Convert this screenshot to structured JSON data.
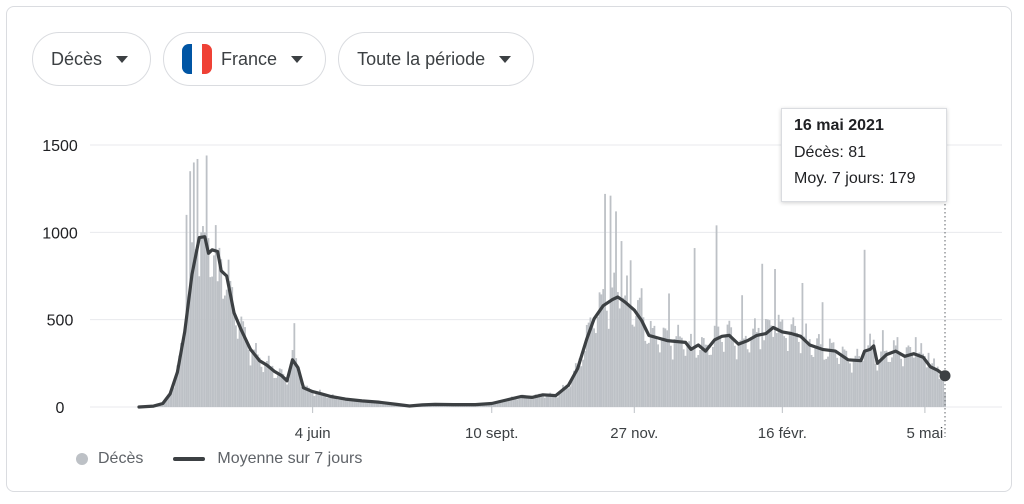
{
  "filters": {
    "metric": "Décès",
    "country": "France",
    "period": "Toute la période"
  },
  "colors": {
    "bars": "#bdc1c6",
    "line": "#3c4043",
    "grid": "#e8eaed",
    "flag_blue": "#0055a4",
    "flag_white": "#ffffff",
    "flag_red": "#ef4135"
  },
  "tooltip": {
    "date": "16 mai 2021",
    "deaths_label": "Décès: 81",
    "avg_label": "Moy. 7 jours: 179"
  },
  "legend": {
    "bars_label": "Décès",
    "line_label": "Moyenne sur 7 jours"
  },
  "chart_data": {
    "type": "bar",
    "y_ticks": [
      0,
      500,
      1000,
      1500
    ],
    "ylim": [
      0,
      1500
    ],
    "xlim": [
      "2020-03-01",
      "2021-05-16"
    ],
    "x_ticks": [
      {
        "date": "2020-06-04",
        "label": "4 juin"
      },
      {
        "date": "2020-09-10",
        "label": "10 sept."
      },
      {
        "date": "2020-11-27",
        "label": "27 nov."
      },
      {
        "date": "2021-02-16",
        "label": "16 févr."
      },
      {
        "date": "2021-05-05",
        "label": "5 mai"
      }
    ],
    "highlight": {
      "date": "2021-05-16",
      "value": 81,
      "avg": 179
    },
    "series": [
      {
        "name": "Moyenne sur 7 jours",
        "type": "line",
        "points": [
          [
            "2020-03-01",
            0
          ],
          [
            "2020-03-09",
            5
          ],
          [
            "2020-03-14",
            20
          ],
          [
            "2020-03-18",
            75
          ],
          [
            "2020-03-22",
            200
          ],
          [
            "2020-03-26",
            430
          ],
          [
            "2020-03-30",
            760
          ],
          [
            "2020-04-03",
            970
          ],
          [
            "2020-04-06",
            975
          ],
          [
            "2020-04-08",
            880
          ],
          [
            "2020-04-10",
            900
          ],
          [
            "2020-04-13",
            890
          ],
          [
            "2020-04-15",
            780
          ],
          [
            "2020-04-18",
            750
          ],
          [
            "2020-04-22",
            540
          ],
          [
            "2020-04-26",
            440
          ],
          [
            "2020-05-01",
            330
          ],
          [
            "2020-05-06",
            265
          ],
          [
            "2020-05-10",
            240
          ],
          [
            "2020-05-14",
            205
          ],
          [
            "2020-05-18",
            180
          ],
          [
            "2020-05-21",
            150
          ],
          [
            "2020-05-24",
            270
          ],
          [
            "2020-05-27",
            225
          ],
          [
            "2020-05-30",
            110
          ],
          [
            "2020-06-04",
            88
          ],
          [
            "2020-06-08",
            78
          ],
          [
            "2020-06-14",
            60
          ],
          [
            "2020-06-22",
            45
          ],
          [
            "2020-07-01",
            35
          ],
          [
            "2020-07-10",
            28
          ],
          [
            "2020-07-20",
            15
          ],
          [
            "2020-07-27",
            6
          ],
          [
            "2020-08-03",
            12
          ],
          [
            "2020-08-10",
            15
          ],
          [
            "2020-08-20",
            14
          ],
          [
            "2020-09-01",
            14
          ],
          [
            "2020-09-10",
            20
          ],
          [
            "2020-09-18",
            40
          ],
          [
            "2020-09-26",
            60
          ],
          [
            "2020-10-02",
            55
          ],
          [
            "2020-10-08",
            70
          ],
          [
            "2020-10-15",
            65
          ],
          [
            "2020-10-22",
            125
          ],
          [
            "2020-10-27",
            220
          ],
          [
            "2020-11-01",
            390
          ],
          [
            "2020-11-05",
            505
          ],
          [
            "2020-11-10",
            580
          ],
          [
            "2020-11-15",
            615
          ],
          [
            "2020-11-18",
            630
          ],
          [
            "2020-11-22",
            600
          ],
          [
            "2020-11-27",
            555
          ],
          [
            "2020-12-01",
            495
          ],
          [
            "2020-12-05",
            410
          ],
          [
            "2020-12-10",
            395
          ],
          [
            "2020-12-15",
            380
          ],
          [
            "2020-12-20",
            375
          ],
          [
            "2020-12-25",
            370
          ],
          [
            "2020-12-28",
            330
          ],
          [
            "2021-01-01",
            355
          ],
          [
            "2021-01-05",
            320
          ],
          [
            "2021-01-10",
            385
          ],
          [
            "2021-01-14",
            405
          ],
          [
            "2021-01-18",
            410
          ],
          [
            "2021-01-23",
            360
          ],
          [
            "2021-01-28",
            380
          ],
          [
            "2021-02-02",
            410
          ],
          [
            "2021-02-07",
            420
          ],
          [
            "2021-02-11",
            455
          ],
          [
            "2021-02-16",
            430
          ],
          [
            "2021-02-21",
            420
          ],
          [
            "2021-02-26",
            405
          ],
          [
            "2021-03-03",
            355
          ],
          [
            "2021-03-10",
            330
          ],
          [
            "2021-03-17",
            320
          ],
          [
            "2021-03-24",
            270
          ],
          [
            "2021-03-31",
            265
          ],
          [
            "2021-04-02",
            320
          ],
          [
            "2021-04-05",
            330
          ],
          [
            "2021-04-07",
            350
          ],
          [
            "2021-04-09",
            250
          ],
          [
            "2021-04-14",
            300
          ],
          [
            "2021-04-19",
            320
          ],
          [
            "2021-04-24",
            290
          ],
          [
            "2021-04-29",
            305
          ],
          [
            "2021-05-04",
            285
          ],
          [
            "2021-05-08",
            230
          ],
          [
            "2021-05-12",
            210
          ],
          [
            "2021-05-16",
            179
          ]
        ]
      },
      {
        "name": "Décès",
        "type": "bar",
        "spikes": [
          [
            "2020-03-27",
            1100
          ],
          [
            "2020-03-29",
            1350
          ],
          [
            "2020-03-31",
            1400
          ],
          [
            "2020-04-02",
            1420
          ],
          [
            "2020-04-06",
            1000
          ],
          [
            "2020-04-07",
            1440
          ],
          [
            "2020-04-13",
            720
          ],
          [
            "2020-04-16",
            620
          ],
          [
            "2020-05-25",
            480
          ],
          [
            "2020-11-11",
            1220
          ],
          [
            "2020-11-14",
            1210
          ],
          [
            "2020-11-17",
            1120
          ],
          [
            "2020-11-20",
            950
          ],
          [
            "2020-11-25",
            840
          ],
          [
            "2020-12-01",
            680
          ],
          [
            "2020-12-16",
            650
          ],
          [
            "2020-12-30",
            910
          ],
          [
            "2021-01-11",
            1040
          ],
          [
            "2021-01-25",
            640
          ],
          [
            "2021-02-05",
            820
          ],
          [
            "2021-02-12",
            790
          ],
          [
            "2021-02-27",
            710
          ],
          [
            "2021-03-10",
            600
          ],
          [
            "2021-04-02",
            900
          ],
          [
            "2021-04-12",
            440
          ],
          [
            "2021-04-20",
            400
          ],
          [
            "2021-04-30",
            400
          ],
          [
            "2021-05-07",
            310
          ]
        ]
      }
    ]
  }
}
